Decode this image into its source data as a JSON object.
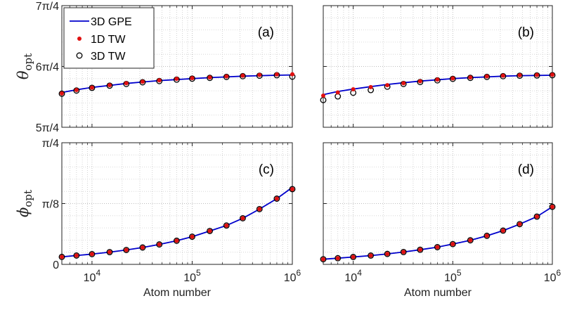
{
  "chart_data": {
    "type": "line",
    "x_scale": "log",
    "xlim": [
      5000,
      1000000
    ],
    "x_ticks": [
      10000,
      100000,
      1000000
    ],
    "x_tick_labels": [
      [
        "10",
        "4"
      ],
      [
        "10",
        "5"
      ],
      [
        "10",
        "6"
      ]
    ],
    "xlabel": "Atom number",
    "grid": true,
    "grid_style": "dotted",
    "legend_position": "top-left",
    "legend": [
      {
        "label": "3D GPE",
        "style": "line",
        "color": "#0000cc"
      },
      {
        "label": "1D TW",
        "style": "dot",
        "color": "#e01010"
      },
      {
        "label": "3D TW",
        "style": "open-circle",
        "color": "#000000"
      }
    ],
    "rows": [
      {
        "ylabel_main": "θ",
        "ylabel_sub": "opt",
        "ylim": [
          1.25,
          1.75
        ],
        "y_ticks": [
          1.25,
          1.5,
          1.75
        ],
        "y_tick_labels": [
          "5π/4",
          "6π/4",
          "7π/4"
        ],
        "panels": [
          {
            "label": "(a)",
            "gpe_x": [
              5000,
              7000,
              10000,
              15000,
              22000,
              32000,
              47000,
              70000,
              100000,
              150000,
              220000,
              320000,
              470000,
              700000,
              1000000
            ],
            "gpe_y": [
              1.393,
              1.404,
              1.414,
              1.422,
              1.43,
              1.436,
              1.442,
              1.446,
              1.45,
              1.454,
              1.457,
              1.46,
              1.462,
              1.464,
              1.465
            ],
            "x": [
              5000,
              7000,
              10000,
              15000,
              22000,
              32000,
              47000,
              70000,
              100000,
              150000,
              220000,
              320000,
              470000,
              700000,
              1000000
            ],
            "tw1d_y": [
              1.389,
              1.403,
              1.413,
              1.423,
              1.431,
              1.437,
              1.443,
              1.449,
              1.452,
              1.455,
              1.459,
              1.462,
              1.465,
              1.467,
              1.468
            ],
            "tw3d_y": [
              1.388,
              1.401,
              1.412,
              1.421,
              1.428,
              1.435,
              1.44,
              1.446,
              1.45,
              1.453,
              1.457,
              1.46,
              1.462,
              1.464,
              1.458
            ]
          },
          {
            "label": "(b)",
            "gpe_x": [
              5000,
              7000,
              10000,
              15000,
              22000,
              32000,
              47000,
              70000,
              100000,
              150000,
              220000,
              320000,
              470000,
              700000,
              1000000
            ],
            "gpe_y": [
              1.384,
              1.397,
              1.407,
              1.417,
              1.426,
              1.433,
              1.44,
              1.445,
              1.45,
              1.454,
              1.457,
              1.46,
              1.462,
              1.463,
              1.464
            ],
            "x": [
              5000,
              7000,
              10000,
              15000,
              22000,
              32000,
              47000,
              70000,
              100000,
              150000,
              220000,
              320000,
              470000,
              700000,
              1000000
            ],
            "tw1d_y": [
              1.38,
              1.393,
              1.406,
              1.415,
              1.423,
              1.431,
              1.439,
              1.446,
              1.451,
              1.455,
              1.459,
              1.462,
              1.464,
              1.465,
              1.466
            ],
            "tw3d_y": [
              1.362,
              1.377,
              1.392,
              1.403,
              1.417,
              1.428,
              1.436,
              1.443,
              1.449,
              1.453,
              1.457,
              1.46,
              1.462,
              1.463,
              1.464
            ]
          }
        ]
      },
      {
        "ylabel_main": "ϕ",
        "ylabel_sub": "opt",
        "ylim": [
          0,
          0.25
        ],
        "y_ticks": [
          0,
          0.125,
          0.25
        ],
        "y_tick_labels": [
          "0",
          "π/8",
          "π/4"
        ],
        "panels": [
          {
            "label": "(c)",
            "gpe_x": [
              5000,
              7000,
              10000,
              15000,
              22000,
              32000,
              47000,
              70000,
              100000,
              150000,
              220000,
              320000,
              470000,
              700000,
              1000000
            ],
            "gpe_y": [
              0.0154,
              0.0182,
              0.0211,
              0.0252,
              0.0296,
              0.0347,
              0.041,
              0.0486,
              0.0569,
              0.0686,
              0.0799,
              0.0948,
              0.1136,
              0.1351,
              0.1582
            ],
            "x": [
              5000,
              7000,
              10000,
              15000,
              22000,
              32000,
              47000,
              70000,
              100000,
              150000,
              220000,
              320000,
              470000,
              700000,
              1000000
            ],
            "tw1d_y": [
              0.0154,
              0.0182,
              0.0211,
              0.0252,
              0.0296,
              0.0347,
              0.041,
              0.0486,
              0.0569,
              0.0686,
              0.0799,
              0.0948,
              0.1136,
              0.1351,
              0.1547
            ],
            "tw3d_y": [
              0.0154,
              0.0182,
              0.0211,
              0.0252,
              0.0296,
              0.0347,
              0.041,
              0.0486,
              0.0569,
              0.0686,
              0.0799,
              0.0948,
              0.1136,
              0.1351,
              0.1547
            ]
          },
          {
            "label": "(d)",
            "gpe_x": [
              5000,
              7000,
              10000,
              15000,
              22000,
              32000,
              47000,
              70000,
              100000,
              150000,
              220000,
              320000,
              470000,
              700000,
              1000000
            ],
            "gpe_y": [
              0.0106,
              0.0127,
              0.0152,
              0.0181,
              0.0215,
              0.0254,
              0.0301,
              0.0354,
              0.0417,
              0.0495,
              0.0587,
              0.0694,
              0.0827,
              0.0982,
              0.1183
            ],
            "x": [
              5000,
              7000,
              10000,
              15000,
              22000,
              32000,
              47000,
              70000,
              100000,
              150000,
              220000,
              320000,
              470000,
              700000,
              1000000
            ],
            "tw1d_y": [
              0.0106,
              0.0127,
              0.0152,
              0.0181,
              0.0215,
              0.0254,
              0.0301,
              0.0354,
              0.0417,
              0.0495,
              0.0587,
              0.0694,
              0.0827,
              0.0982,
              0.1183
            ],
            "tw3d_y": [
              0.0106,
              0.0127,
              0.0152,
              0.0181,
              0.0215,
              0.0254,
              0.0301,
              0.0354,
              0.0417,
              0.0495,
              0.0587,
              0.0694,
              0.0827,
              0.0982,
              0.1183
            ]
          }
        ]
      }
    ]
  }
}
